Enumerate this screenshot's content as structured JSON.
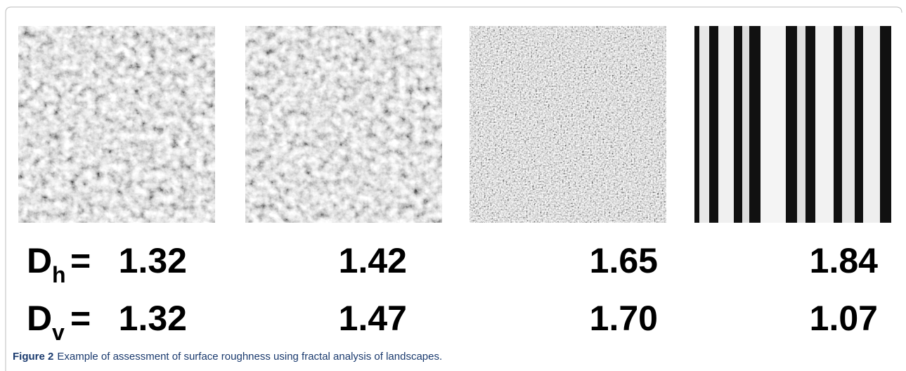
{
  "figure": {
    "rows": [
      {
        "symbol": "D",
        "subscript": "h",
        "equals": "=",
        "values": [
          "1.32",
          "1.42",
          "1.65",
          "1.84"
        ]
      },
      {
        "symbol": "D",
        "subscript": "v",
        "equals": "=",
        "values": [
          "1.32",
          "1.47",
          "1.70",
          "1.07"
        ]
      }
    ],
    "caption": {
      "label": "Figure 2",
      "text": "Example of assessment of surface roughness using fractal analysis of landscapes."
    }
  }
}
